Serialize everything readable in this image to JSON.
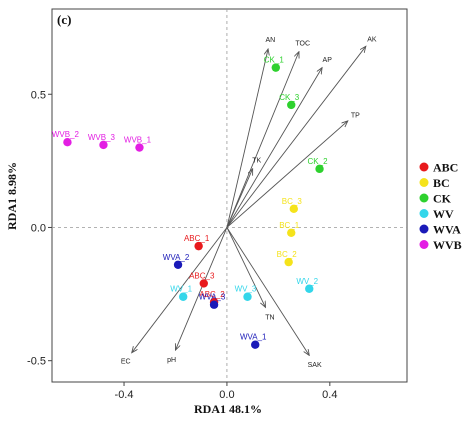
{
  "chart_data": {
    "type": "scatter",
    "panel_label": "(c)",
    "xlabel": "RDA1 48.1%",
    "ylabel": "RDA1 8.98%",
    "xlim": [
      -0.68,
      0.7
    ],
    "ylim": [
      -0.58,
      0.82
    ],
    "xticks": [
      -0.4,
      0.0,
      0.4
    ],
    "xtick_labels": [
      "-0.4",
      "0.0",
      "0.4"
    ],
    "yticks": [
      -0.5,
      0.0,
      0.5
    ],
    "ytick_labels": [
      "-0.5",
      "0.0",
      "0.5"
    ],
    "grid": false,
    "reference_lines": "dashed at x=0 and y=0",
    "legend_position": "right",
    "groups": [
      {
        "name": "ABC",
        "color": "#e8191c"
      },
      {
        "name": "BC",
        "color": "#f5e31b"
      },
      {
        "name": "CK",
        "color": "#2ed12e"
      },
      {
        "name": "WV",
        "color": "#33d6ea"
      },
      {
        "name": "WVA",
        "color": "#1a1ab8"
      },
      {
        "name": "WVB",
        "color": "#e31ee3"
      }
    ],
    "points": [
      {
        "group": "ABC",
        "x": -0.11,
        "y": -0.07,
        "label": "ABC_1"
      },
      {
        "group": "ABC",
        "x": -0.09,
        "y": -0.21,
        "label": "ABC_3"
      },
      {
        "group": "ABC",
        "x": -0.05,
        "y": -0.28,
        "label": "ABC_2"
      },
      {
        "group": "BC",
        "x": 0.26,
        "y": 0.07,
        "label": "BC_3"
      },
      {
        "group": "BC",
        "x": 0.25,
        "y": -0.02,
        "label": "BC_1"
      },
      {
        "group": "BC",
        "x": 0.24,
        "y": -0.13,
        "label": "BC_2"
      },
      {
        "group": "CK",
        "x": 0.19,
        "y": 0.6,
        "label": "CK_1"
      },
      {
        "group": "CK",
        "x": 0.25,
        "y": 0.46,
        "label": "CK_3"
      },
      {
        "group": "CK",
        "x": 0.36,
        "y": 0.22,
        "label": "CK_2"
      },
      {
        "group": "WV",
        "x": -0.17,
        "y": -0.26,
        "label": "WV_1"
      },
      {
        "group": "WV",
        "x": 0.08,
        "y": -0.26,
        "label": "WV_3"
      },
      {
        "group": "WV",
        "x": 0.32,
        "y": -0.23,
        "label": "WV_2"
      },
      {
        "group": "WVA",
        "x": -0.19,
        "y": -0.14,
        "label": "WVA_2"
      },
      {
        "group": "WVA",
        "x": -0.05,
        "y": -0.29,
        "label": "WVA_3"
      },
      {
        "group": "WVA",
        "x": 0.11,
        "y": -0.44,
        "label": "WVA_1"
      },
      {
        "group": "WVB",
        "x": -0.62,
        "y": 0.32,
        "label": "WVB_2"
      },
      {
        "group": "WVB",
        "x": -0.48,
        "y": 0.31,
        "label": "WVB_3"
      },
      {
        "group": "WVB",
        "x": -0.34,
        "y": 0.3,
        "label": "WVB_1"
      }
    ],
    "vectors": [
      {
        "name": "AN",
        "x": 0.16,
        "y": 0.67
      },
      {
        "name": "TOC",
        "x": 0.28,
        "y": 0.66
      },
      {
        "name": "AP",
        "x": 0.37,
        "y": 0.6
      },
      {
        "name": "AK",
        "x": 0.54,
        "y": 0.68
      },
      {
        "name": "TP",
        "x": 0.47,
        "y": 0.4
      },
      {
        "name": "TK",
        "x": 0.1,
        "y": 0.22
      },
      {
        "name": "TN",
        "x": 0.15,
        "y": -0.3
      },
      {
        "name": "SAK",
        "x": 0.32,
        "y": -0.48
      },
      {
        "name": "pH",
        "x": -0.2,
        "y": -0.46
      },
      {
        "name": "EC",
        "x": -0.37,
        "y": -0.47
      }
    ]
  }
}
